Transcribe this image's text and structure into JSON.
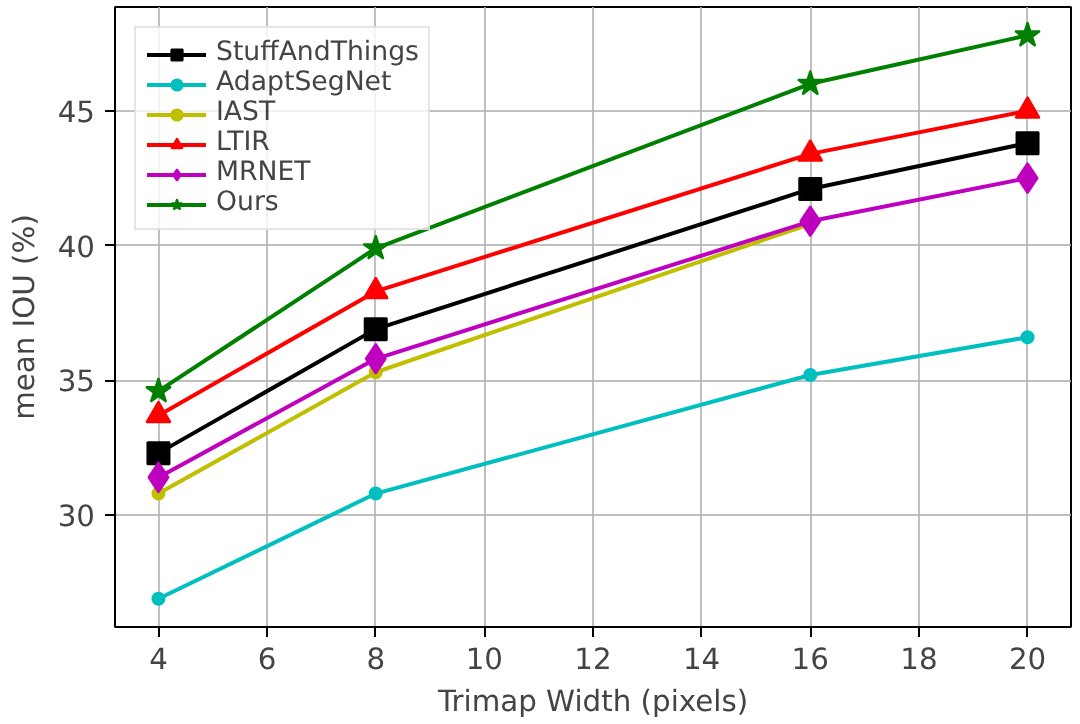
{
  "chart_data": {
    "type": "line",
    "xlabel": "Trimap Width (pixels)",
    "ylabel": "mean IOU (%)",
    "x": [
      4,
      8,
      16,
      20
    ],
    "xlim": [
      3.2,
      20.8
    ],
    "xticks": [
      4,
      6,
      8,
      10,
      12,
      14,
      16,
      18,
      20
    ],
    "ylim": [
      25.85,
      48.85
    ],
    "yticks": [
      30,
      35,
      40,
      45
    ],
    "grid": true,
    "legend": "top left",
    "line_style": "solid",
    "series": [
      {
        "name": "StuffAndThings",
        "color": "#000000",
        "marker": "square",
        "values": [
          32.3,
          36.9,
          42.1,
          43.8
        ]
      },
      {
        "name": "AdaptSegNet",
        "color": "#00bfbf",
        "marker": "circle",
        "values": [
          26.9,
          30.8,
          35.2,
          36.6
        ]
      },
      {
        "name": "IAST",
        "color": "#bfbf00",
        "marker": "circle",
        "values": [
          30.8,
          35.3,
          40.8,
          null
        ]
      },
      {
        "name": "LTIR",
        "color": "#ff0000",
        "marker": "triangle",
        "values": [
          33.7,
          38.3,
          43.4,
          45.0
        ]
      },
      {
        "name": "MRNET",
        "color": "#bf00bf",
        "marker": "diamond",
        "values": [
          31.4,
          35.8,
          40.9,
          42.5
        ]
      },
      {
        "name": "Ours",
        "color": "#008000",
        "marker": "star",
        "values": [
          34.6,
          39.9,
          46.0,
          47.8
        ]
      }
    ]
  }
}
